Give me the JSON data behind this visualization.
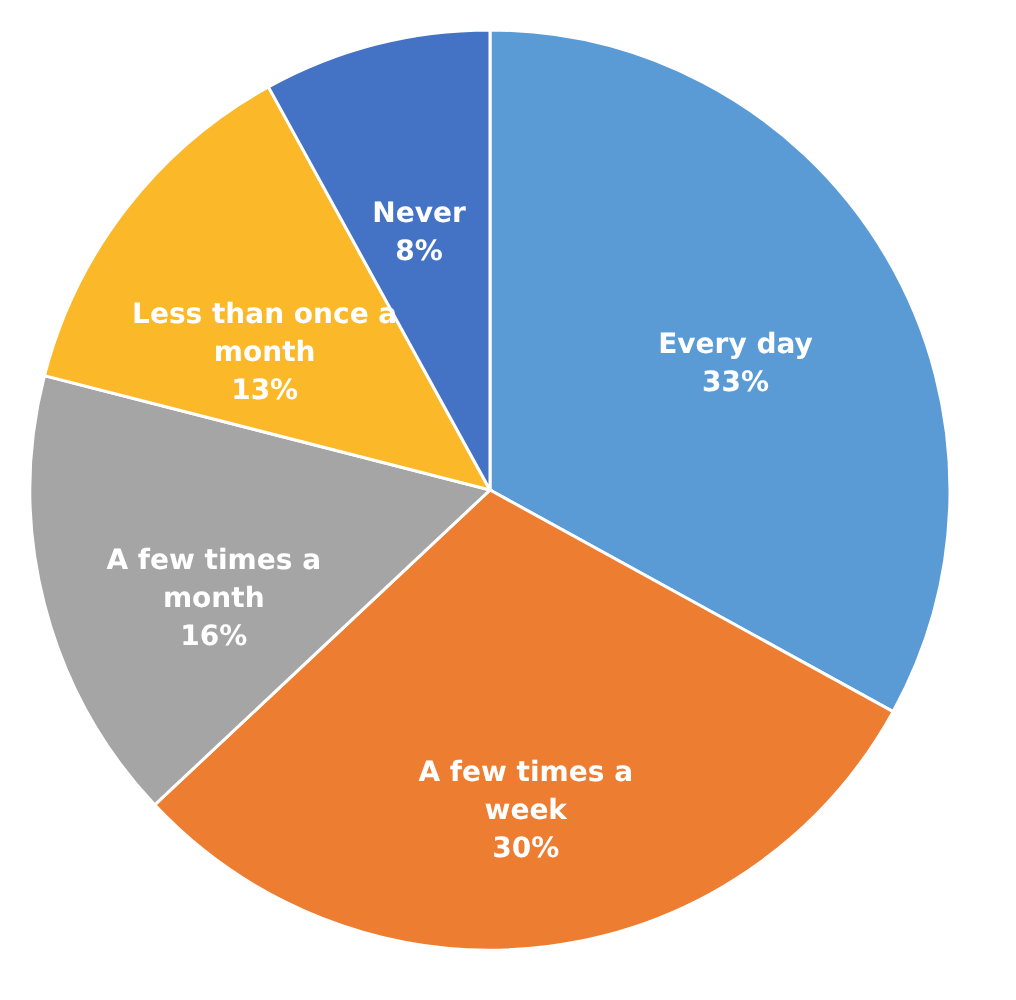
{
  "chart_data": {
    "type": "pie",
    "categories": [
      "Every day",
      "A few times a week",
      "A few times a month",
      "Less than once a month",
      "Never"
    ],
    "values": [
      33,
      30,
      16,
      13,
      8
    ],
    "value_labels": [
      "33%",
      "30%",
      "16%",
      "13%",
      "8%"
    ],
    "colors": [
      "#5b9bd5",
      "#ed7d31",
      "#a5a5a5",
      "#fbb829",
      "#4472c4"
    ],
    "legend": false
  }
}
